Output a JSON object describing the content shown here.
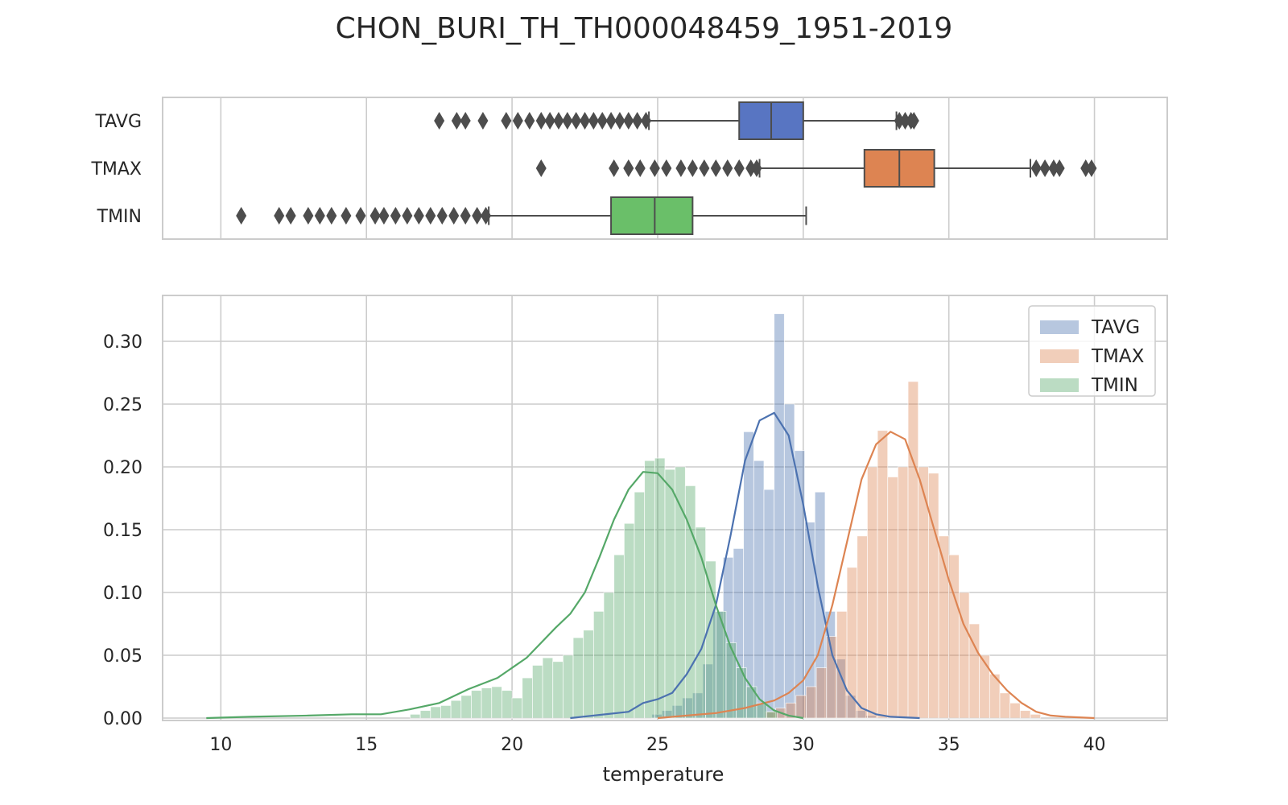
{
  "chart_data": [
    {
      "type": "box",
      "title": "CHON_BURI_TH_TH000048459_1951-2019",
      "xlabel": "temperature",
      "xlim": [
        8,
        42.5
      ],
      "xticks": [
        10,
        15,
        20,
        25,
        30,
        35,
        40
      ],
      "grid": true,
      "series": [
        {
          "name": "TAVG",
          "color": "#5875c2",
          "whisker_low": 24.7,
          "q1": 27.8,
          "median": 28.9,
          "q3": 30.0,
          "whisker_high": 33.2,
          "outliers": [
            17.5,
            18.1,
            18.4,
            19.0,
            19.8,
            20.2,
            20.6,
            21.0,
            21.3,
            21.6,
            21.9,
            22.2,
            22.5,
            22.8,
            23.1,
            23.4,
            23.7,
            24.0,
            24.3,
            24.6,
            33.3,
            33.5,
            33.7,
            33.8
          ]
        },
        {
          "name": "TMAX",
          "color": "#dd8452",
          "whisker_low": 28.5,
          "q1": 32.1,
          "median": 33.3,
          "q3": 34.5,
          "whisker_high": 37.8,
          "outliers": [
            21.0,
            23.5,
            24.0,
            24.4,
            24.9,
            25.3,
            25.8,
            26.2,
            26.6,
            27.0,
            27.4,
            27.8,
            28.2,
            28.4,
            38.0,
            38.3,
            38.6,
            38.8,
            39.7,
            39.9
          ]
        },
        {
          "name": "TMIN",
          "color": "#6abf69",
          "whisker_low": 19.2,
          "q1": 23.4,
          "median": 24.9,
          "q3": 26.2,
          "whisker_high": 30.1,
          "outliers": [
            10.7,
            12.0,
            12.4,
            13.0,
            13.4,
            13.8,
            14.3,
            14.8,
            15.3,
            15.6,
            16.0,
            16.4,
            16.8,
            17.2,
            17.6,
            18.0,
            18.4,
            18.8,
            19.1
          ]
        }
      ]
    },
    {
      "type": "histogram",
      "xlabel": "temperature",
      "ylabel": "",
      "xlim": [
        8,
        42.5
      ],
      "ylim": [
        0,
        0.34
      ],
      "xticks": [
        10,
        15,
        20,
        25,
        30,
        35,
        40
      ],
      "yticks": [
        0.0,
        0.05,
        0.1,
        0.15,
        0.2,
        0.25,
        0.3
      ],
      "ytick_labels": [
        "0.00",
        "0.05",
        "0.10",
        "0.15",
        "0.20",
        "0.25",
        "0.30"
      ],
      "legend_position": "upper right",
      "grid": true,
      "series": [
        {
          "name": "TAVG",
          "color": "#4c72b0",
          "bins": [
            [
              24.8,
              25.15,
              0.003
            ],
            [
              25.15,
              25.5,
              0.006
            ],
            [
              25.5,
              25.85,
              0.01
            ],
            [
              25.85,
              26.2,
              0.016
            ],
            [
              26.2,
              26.55,
              0.02
            ],
            [
              26.55,
              26.9,
              0.043
            ],
            [
              26.9,
              27.25,
              0.085
            ],
            [
              27.25,
              27.6,
              0.128
            ],
            [
              27.6,
              27.95,
              0.135
            ],
            [
              27.95,
              28.3,
              0.228
            ],
            [
              28.3,
              28.65,
              0.205
            ],
            [
              28.65,
              29.0,
              0.182
            ],
            [
              29.0,
              29.35,
              0.322
            ],
            [
              29.35,
              29.7,
              0.25
            ],
            [
              29.7,
              30.05,
              0.213
            ],
            [
              30.05,
              30.4,
              0.156
            ],
            [
              30.4,
              30.75,
              0.18
            ],
            [
              30.75,
              31.1,
              0.085
            ],
            [
              31.1,
              31.45,
              0.047
            ],
            [
              31.45,
              31.8,
              0.018
            ],
            [
              31.8,
              32.15,
              0.006
            ],
            [
              32.15,
              32.5,
              0.002
            ]
          ],
          "kde_x": [
            22,
            24,
            24.5,
            25,
            25.5,
            26,
            26.5,
            27,
            27.5,
            28,
            28.5,
            29,
            29.5,
            30,
            30.5,
            31,
            31.5,
            32,
            32.5,
            33,
            34
          ],
          "kde_y": [
            0.0,
            0.005,
            0.012,
            0.015,
            0.02,
            0.035,
            0.055,
            0.09,
            0.145,
            0.205,
            0.237,
            0.243,
            0.225,
            0.17,
            0.105,
            0.05,
            0.022,
            0.008,
            0.003,
            0.001,
            0.0
          ]
        },
        {
          "name": "TMAX",
          "color": "#dd8452",
          "bins": [
            [
              28.7,
              29.05,
              0.005
            ],
            [
              29.05,
              29.4,
              0.008
            ],
            [
              29.4,
              29.75,
              0.012
            ],
            [
              29.75,
              30.1,
              0.018
            ],
            [
              30.1,
              30.45,
              0.025
            ],
            [
              30.45,
              30.8,
              0.04
            ],
            [
              30.8,
              31.15,
              0.065
            ],
            [
              31.15,
              31.5,
              0.085
            ],
            [
              31.5,
              31.85,
              0.12
            ],
            [
              31.85,
              32.2,
              0.145
            ],
            [
              32.2,
              32.55,
              0.2
            ],
            [
              32.55,
              32.9,
              0.229
            ],
            [
              32.9,
              33.25,
              0.192
            ],
            [
              33.25,
              33.6,
              0.2
            ],
            [
              33.6,
              33.95,
              0.268
            ],
            [
              33.95,
              34.3,
              0.2
            ],
            [
              34.3,
              34.65,
              0.195
            ],
            [
              34.65,
              35.0,
              0.145
            ],
            [
              35.0,
              35.35,
              0.13
            ],
            [
              35.35,
              35.7,
              0.1
            ],
            [
              35.7,
              36.05,
              0.075
            ],
            [
              36.05,
              36.4,
              0.05
            ],
            [
              36.4,
              36.75,
              0.035
            ],
            [
              36.75,
              37.1,
              0.02
            ],
            [
              37.1,
              37.45,
              0.012
            ],
            [
              37.45,
              37.8,
              0.006
            ],
            [
              37.8,
              38.15,
              0.003
            ]
          ],
          "kde_x": [
            25,
            26,
            27,
            28,
            29,
            29.5,
            30,
            30.5,
            31,
            31.5,
            32,
            32.5,
            33,
            33.5,
            34,
            34.5,
            35,
            35.5,
            36,
            36.5,
            37,
            37.5,
            38,
            38.5,
            39,
            40
          ],
          "kde_y": [
            0.0,
            0.002,
            0.004,
            0.008,
            0.014,
            0.02,
            0.03,
            0.05,
            0.09,
            0.14,
            0.19,
            0.218,
            0.228,
            0.222,
            0.19,
            0.15,
            0.11,
            0.075,
            0.052,
            0.035,
            0.022,
            0.012,
            0.005,
            0.002,
            0.001,
            0.0
          ]
        },
        {
          "name": "TMIN",
          "color": "#55a868",
          "bins": [
            [
              16.5,
              16.85,
              0.003
            ],
            [
              16.85,
              17.2,
              0.006
            ],
            [
              17.2,
              17.55,
              0.009
            ],
            [
              17.55,
              17.9,
              0.01
            ],
            [
              17.9,
              18.25,
              0.014
            ],
            [
              18.25,
              18.6,
              0.018
            ],
            [
              18.6,
              18.95,
              0.022
            ],
            [
              18.95,
              19.3,
              0.024
            ],
            [
              19.3,
              19.65,
              0.025
            ],
            [
              19.65,
              20.0,
              0.022
            ],
            [
              20.0,
              20.35,
              0.016
            ],
            [
              20.35,
              20.7,
              0.032
            ],
            [
              20.7,
              21.05,
              0.042
            ],
            [
              21.05,
              21.4,
              0.048
            ],
            [
              21.4,
              21.75,
              0.045
            ],
            [
              21.75,
              22.1,
              0.05
            ],
            [
              22.1,
              22.45,
              0.064
            ],
            [
              22.45,
              22.8,
              0.07
            ],
            [
              22.8,
              23.15,
              0.085
            ],
            [
              23.15,
              23.5,
              0.1
            ],
            [
              23.5,
              23.85,
              0.13
            ],
            [
              23.85,
              24.2,
              0.155
            ],
            [
              24.2,
              24.55,
              0.18
            ],
            [
              24.55,
              24.9,
              0.205
            ],
            [
              24.9,
              25.25,
              0.207
            ],
            [
              25.25,
              25.6,
              0.198
            ],
            [
              25.6,
              25.95,
              0.2
            ],
            [
              25.95,
              26.3,
              0.185
            ],
            [
              26.3,
              26.65,
              0.152
            ],
            [
              26.65,
              27.0,
              0.125
            ],
            [
              27.0,
              27.35,
              0.085
            ],
            [
              27.35,
              27.7,
              0.06
            ],
            [
              27.7,
              28.05,
              0.04
            ],
            [
              28.05,
              28.4,
              0.025
            ],
            [
              28.4,
              28.75,
              0.012
            ],
            [
              28.75,
              29.1,
              0.005
            ]
          ],
          "kde_x": [
            9.5,
            11,
            13,
            14.5,
            15.5,
            16.5,
            17.5,
            18.5,
            19.5,
            20.5,
            21,
            21.5,
            22,
            22.5,
            23,
            23.5,
            24,
            24.5,
            25,
            25.5,
            26,
            26.5,
            27,
            27.5,
            28,
            28.5,
            29,
            29.5,
            30
          ],
          "kde_y": [
            0.0,
            0.001,
            0.002,
            0.003,
            0.003,
            0.007,
            0.012,
            0.023,
            0.032,
            0.048,
            0.06,
            0.072,
            0.083,
            0.1,
            0.128,
            0.158,
            0.182,
            0.196,
            0.195,
            0.182,
            0.158,
            0.128,
            0.09,
            0.057,
            0.032,
            0.015,
            0.006,
            0.002,
            0.0
          ]
        }
      ]
    }
  ]
}
